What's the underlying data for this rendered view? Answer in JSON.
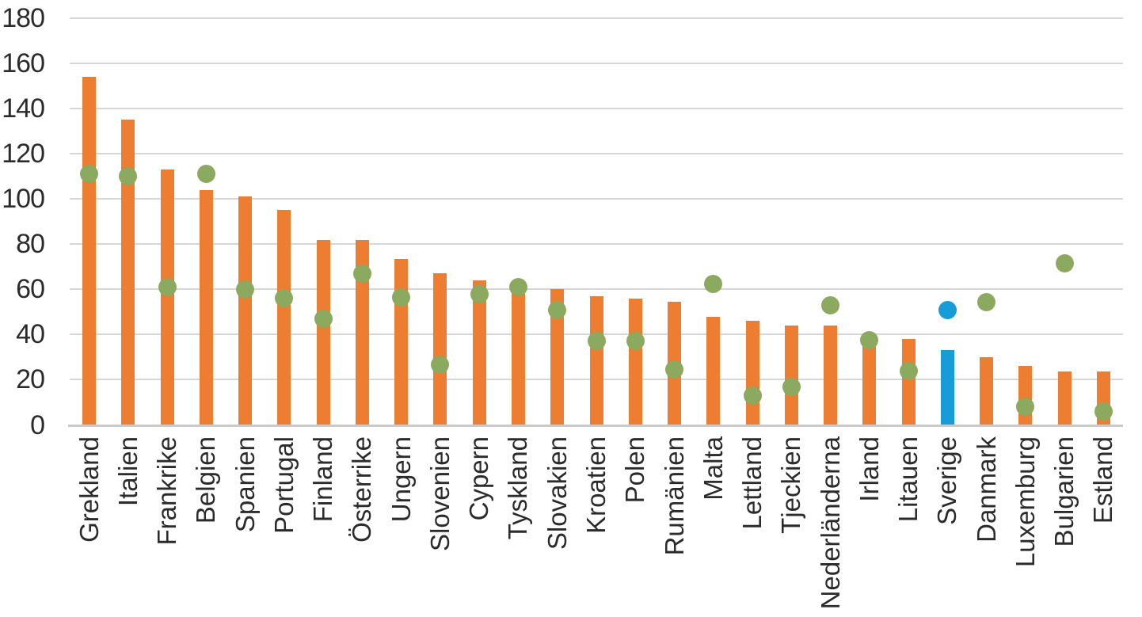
{
  "chart_data": {
    "type": "bar",
    "title": "",
    "xlabel": "",
    "ylabel": "",
    "ylim": [
      0,
      180
    ],
    "yticks": [
      0,
      20,
      40,
      60,
      80,
      100,
      120,
      140,
      160,
      180
    ],
    "grid": true,
    "legend": "none",
    "categories": [
      "Grekland",
      "Italien",
      "Frankrike",
      "Belgien",
      "Spanien",
      "Portugal",
      "Finland",
      "Österrike",
      "Ungern",
      "Slovenien",
      "Cypern",
      "Tyskland",
      "Slovakien",
      "Kroatien",
      "Polen",
      "Rumänien",
      "Malta",
      "Lettland",
      "Tjeckien",
      "Nederländerna",
      "Irland",
      "Litauen",
      "Sverige",
      "Danmark",
      "Luxemburg",
      "Bulgarien",
      "Estland"
    ],
    "series": [
      {
        "name": "bars",
        "type": "bar",
        "values": [
          154,
          135,
          113,
          104,
          101,
          95,
          82,
          82,
          73.5,
          67,
          64,
          62,
          60,
          57,
          56,
          54.5,
          48,
          46,
          44,
          44,
          40.5,
          38,
          33,
          30,
          26,
          23.5,
          23.5
        ]
      },
      {
        "name": "dots",
        "type": "scatter",
        "values": [
          111,
          110,
          61,
          111,
          60,
          56,
          47,
          67,
          56.5,
          26.5,
          58,
          61,
          51,
          37,
          37,
          24.5,
          62.5,
          13,
          17,
          53,
          37.5,
          24,
          51,
          54.5,
          8,
          71.5,
          6
        ]
      }
    ],
    "highlight_category": "Sverige",
    "colors": {
      "bar": "#ED7D31",
      "bar_highlight": "#189CD7",
      "dot": "#8CAA5F",
      "dot_highlight": "#189CD7",
      "gridline": "#D6D6D6",
      "axis_line": "#C9C9C9",
      "text": "#2B2B2B"
    }
  }
}
